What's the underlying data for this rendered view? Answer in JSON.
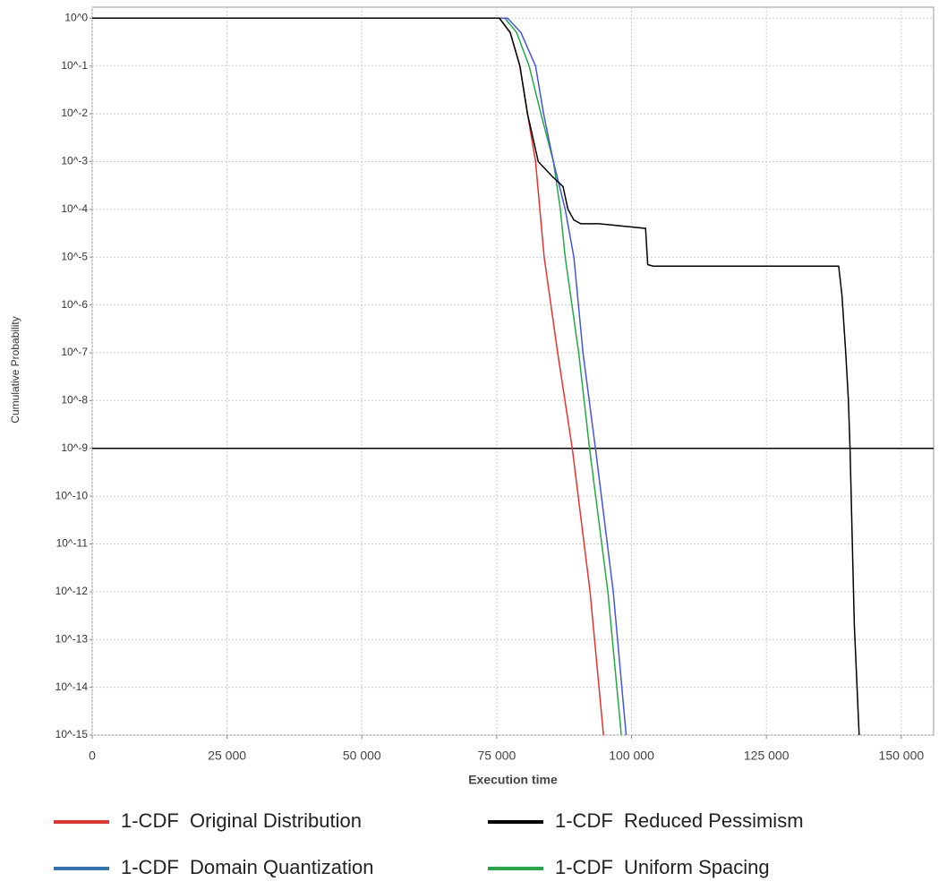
{
  "chart_data": {
    "type": "line",
    "x_label": "Execution time",
    "y_label": "Cumulative Probability",
    "log_y": true,
    "grid": true,
    "xlim": [
      0,
      156000
    ],
    "ylim": [
      1e-15,
      1.7
    ],
    "xticks": [
      0,
      {
        "value": 25000,
        "label": "25 000"
      },
      {
        "value": 50000,
        "label": "50 000"
      },
      {
        "value": 75000,
        "label": "75 000"
      },
      {
        "value": 100000,
        "label": "100 000"
      },
      {
        "value": 125000,
        "label": "125 000"
      },
      {
        "value": 150000,
        "label": "150 000"
      }
    ],
    "yticks": [
      {
        "value": 1,
        "label": "10^0"
      },
      {
        "value": 0.1,
        "label": "10^-1"
      },
      {
        "value": 0.01,
        "label": "10^-2"
      },
      {
        "value": 0.001,
        "label": "10^-3"
      },
      {
        "value": 0.0001,
        "label": "10^-4"
      },
      {
        "value": 1e-05,
        "label": "10^-5"
      },
      {
        "value": 1e-06,
        "label": "10^-6"
      },
      {
        "value": 1e-07,
        "label": "10^-7"
      },
      {
        "value": 1e-08,
        "label": "10^-8"
      },
      {
        "value": 1e-09,
        "label": "10^-9"
      },
      {
        "value": 1e-10,
        "label": "10^-10"
      },
      {
        "value": 1e-11,
        "label": "10^-11"
      },
      {
        "value": 1e-12,
        "label": "10^-12"
      },
      {
        "value": 1e-13,
        "label": "10^-13"
      },
      {
        "value": 1e-14,
        "label": "10^-14"
      },
      {
        "value": 1e-15,
        "label": "10^-15"
      }
    ],
    "threshold": 1e-09,
    "threshold_color": "#000000",
    "series": [
      {
        "name": "1-CDF  Original Distribution",
        "color": "#e8322e",
        "x": [
          0,
          75500,
          77500,
          79300,
          80700,
          82200,
          83800,
          86300,
          89000,
          92300,
          94800
        ],
        "values": [
          1,
          1,
          0.5,
          0.1,
          0.01,
          0.001,
          1e-05,
          1e-07,
          1e-09,
          1e-12,
          1e-15
        ]
      },
      {
        "name": "1-CDF  Reduced Pessimism",
        "color": "#000000",
        "x": [
          0,
          75500,
          77500,
          79300,
          80700,
          82700,
          85200,
          87300,
          88200,
          89300,
          90600,
          94000,
          102600,
          103000,
          104000,
          138400,
          139000,
          139700,
          140200,
          140500,
          141300,
          142200
        ],
        "values": [
          1,
          1,
          0.5,
          0.1,
          0.01,
          0.001,
          0.0005,
          0.0003,
          0.0001,
          6e-05,
          5e-05,
          5e-05,
          4e-05,
          7e-06,
          6.5e-06,
          6.5e-06,
          1.6e-06,
          1e-07,
          1e-08,
          1e-09,
          2e-13,
          1e-15
        ]
      },
      {
        "name": "1-CDF  Domain Quantization",
        "color": "#4455dd",
        "legend_color": "#2e75b6",
        "x": [
          0,
          77000,
          79500,
          82200,
          83700,
          85500,
          87700,
          89300,
          91000,
          93300,
          96600,
          99000
        ],
        "values": [
          1,
          1,
          0.5,
          0.1,
          0.01,
          0.001,
          0.0001,
          1e-05,
          1e-07,
          1e-09,
          1e-12,
          1e-15
        ]
      },
      {
        "name": "1-CDF  Uniform Spacing",
        "color": "#22aa44",
        "x": [
          0,
          76500,
          78700,
          81000,
          83200,
          85500,
          86800,
          87700,
          90200,
          92200,
          95600,
          98100
        ],
        "values": [
          1,
          1,
          0.5,
          0.1,
          0.01,
          0.001,
          0.0001,
          1e-05,
          1e-07,
          1e-09,
          1e-12,
          1e-15
        ]
      }
    ]
  }
}
